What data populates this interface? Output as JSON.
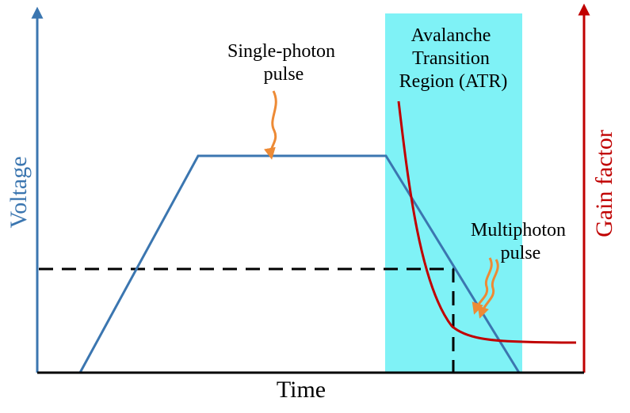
{
  "labels": {
    "single_photon": [
      "Single-photon",
      "pulse"
    ],
    "atr": [
      "Avalanche",
      "Transition",
      "Region (ATR)"
    ],
    "multiphoton": [
      "Multiphoton",
      "pulse"
    ],
    "x_axis": "Time",
    "left_axis": "Voltage",
    "right_axis": "Gain factor"
  },
  "colors": {
    "voltage": "#3b76b0",
    "gain": "#c00000",
    "atr_region": "#7ff2f6",
    "pointer_arrow": "#ed8a35",
    "threshold": "#000000",
    "axis": "#000000"
  }
}
